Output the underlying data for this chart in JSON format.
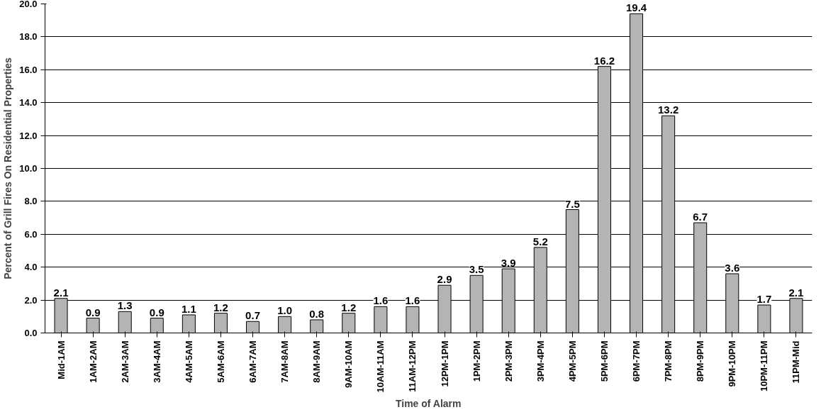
{
  "chart_data": {
    "type": "bar",
    "xlabel": "Time of Alarm",
    "ylabel": "Percent of Grill Fires On Residential Properties",
    "categories": [
      "Mid-1AM",
      "1AM-2AM",
      "2AM-3AM",
      "3AM-4AM",
      "4AM-5AM",
      "5AM-6AM",
      "6AM-7AM",
      "7AM-8AM",
      "8AM-9AM",
      "9AM-10AM",
      "10AM-11AM",
      "11AM-12PM",
      "12PM-1PM",
      "1PM-2PM",
      "2PM-3PM",
      "3PM-4PM",
      "4PM-5PM",
      "5PM-6PM",
      "6PM-7PM",
      "7PM-8PM",
      "8PM-9PM",
      "9PM-10PM",
      "10PM-11PM",
      "11PM-Mid"
    ],
    "values": [
      2.1,
      0.9,
      1.3,
      0.9,
      1.1,
      1.2,
      0.7,
      1.0,
      0.8,
      1.2,
      1.6,
      1.6,
      2.9,
      3.5,
      3.9,
      5.2,
      7.5,
      16.2,
      19.4,
      13.2,
      6.7,
      3.6,
      1.7,
      2.1
    ],
    "value_labels": [
      "2.1",
      "0.9",
      "1.3",
      "0.9",
      "1.1",
      "1.2",
      "0.7",
      "1.0",
      "0.8",
      "1.2",
      "1.6",
      "1.6",
      "2.9",
      "3.5",
      "3.9",
      "5.2",
      "7.5",
      "16.2",
      "19.4",
      "13.2",
      "6.7",
      "3.6",
      "1.7",
      "2.1"
    ],
    "color": "#b4b4b4",
    "ylim": [
      0,
      20
    ],
    "yticks": [
      {
        "value": 0,
        "label": "0.0"
      },
      {
        "value": 2,
        "label": "2.0"
      },
      {
        "value": 4,
        "label": "4.0"
      },
      {
        "value": 6,
        "label": "6.0"
      },
      {
        "value": 8,
        "label": "8.0"
      },
      {
        "value": 10,
        "label": "10.0"
      },
      {
        "value": 12,
        "label": "12.0"
      },
      {
        "value": 14,
        "label": "14.0"
      },
      {
        "value": 16,
        "label": "16.0"
      },
      {
        "value": 18,
        "label": "18.0"
      },
      {
        "value": 20,
        "label": "20.0"
      }
    ],
    "grid": "y"
  }
}
